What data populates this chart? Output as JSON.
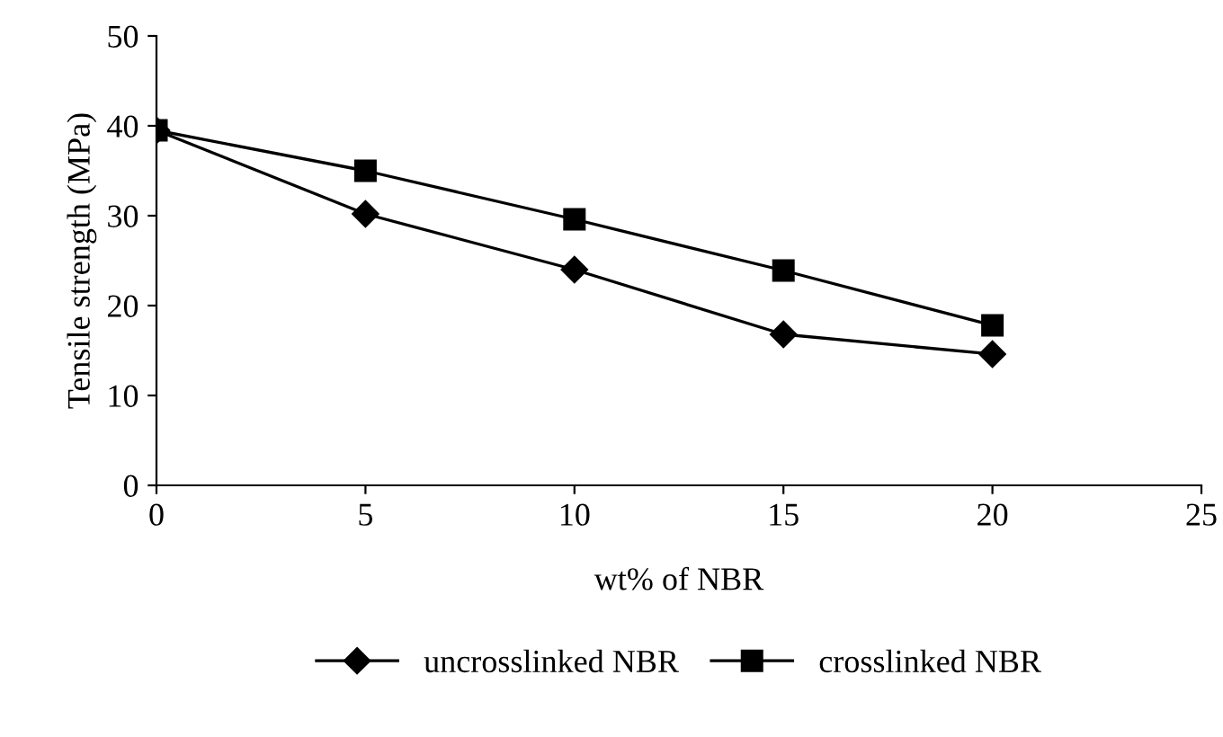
{
  "chart_data": {
    "type": "line",
    "xlabel": "wt% of NBR",
    "ylabel": "Tensile strength (MPa)",
    "x": [
      0,
      5,
      10,
      15,
      20
    ],
    "series": [
      {
        "name": "uncrosslinked NBR",
        "color": "#000000",
        "marker": "diamond",
        "values": [
          39.5,
          30.2,
          24,
          16.8,
          14.6
        ]
      },
      {
        "name": "crosslinked NBR",
        "color": "#000000",
        "marker": "square",
        "values": [
          39.5,
          35,
          29.6,
          23.9,
          17.8
        ]
      }
    ],
    "xlim": [
      0,
      25
    ],
    "xticks": [
      0,
      5,
      10,
      15,
      20,
      25
    ],
    "ylim": [
      0,
      50
    ],
    "yticks": [
      0,
      10,
      20,
      30,
      40,
      50
    ],
    "grid": false,
    "legend": "bottom",
    "line_style": "solid"
  }
}
